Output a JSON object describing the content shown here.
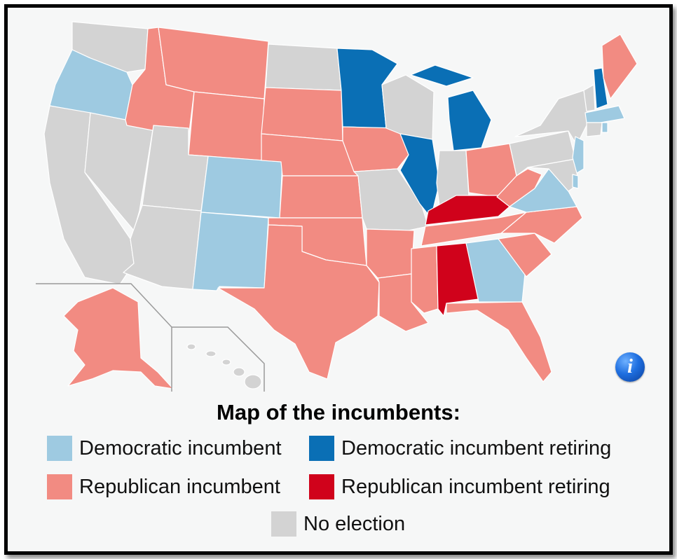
{
  "legend": {
    "title": "Map of the incumbents:",
    "items": [
      {
        "label": "Democratic incumbent",
        "color": "#9ecae1"
      },
      {
        "label": "Democratic incumbent retiring",
        "color": "#0a6fb5"
      },
      {
        "label": "Republican incumbent",
        "color": "#f28b82"
      },
      {
        "label": "Republican incumbent retiring",
        "color": "#d0021b"
      },
      {
        "label": "No election",
        "color": "#d3d3d3"
      }
    ]
  },
  "colors": {
    "background": "#f6f7f7",
    "border": "#000000",
    "state_border": "#ffffff",
    "inset_border": "#9a9a9a",
    "info_button": "#1f6fe0"
  },
  "info_icon": "info-icon"
}
